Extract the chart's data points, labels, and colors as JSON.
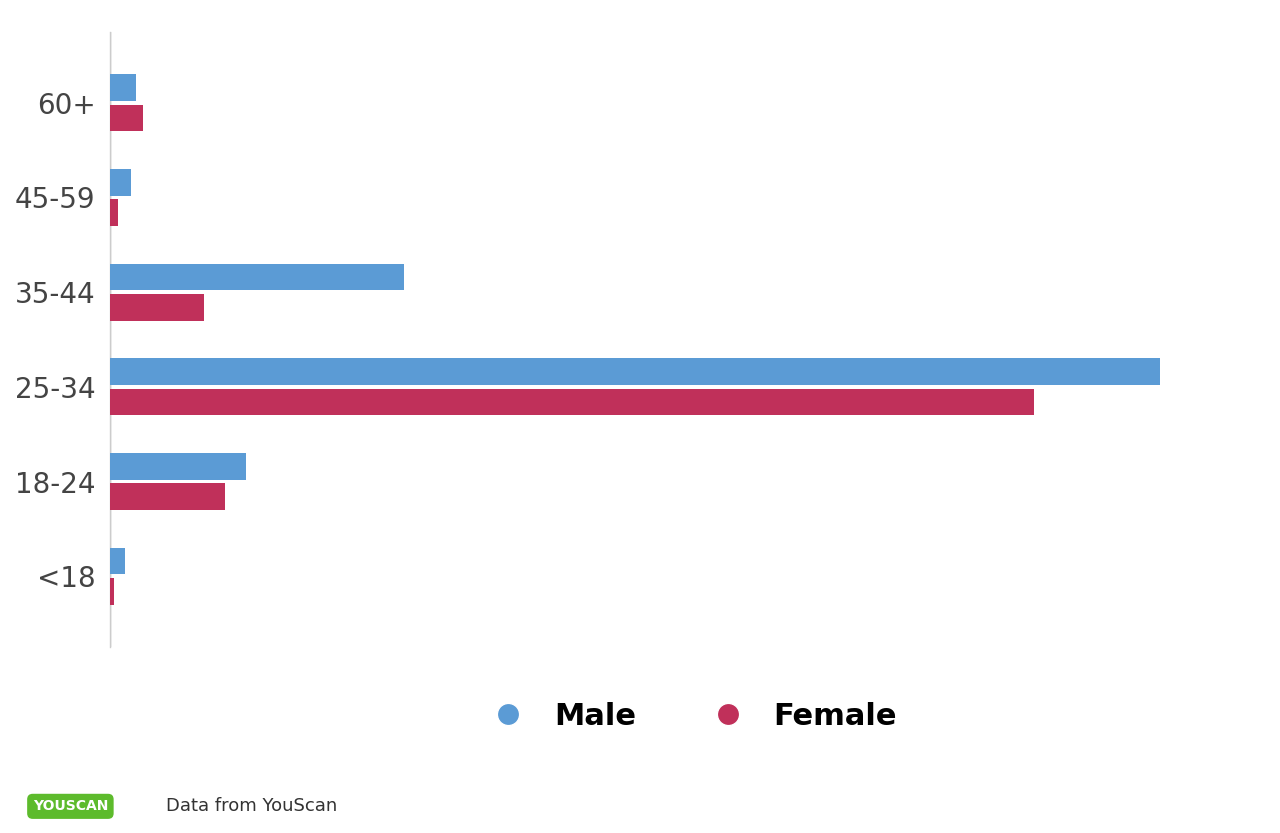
{
  "categories": [
    "60+",
    "45-59",
    "35-44",
    "25-34",
    "18-24",
    "<18"
  ],
  "male_values": [
    2.5,
    2.0,
    28,
    100,
    13,
    1.5
  ],
  "female_values": [
    3.2,
    0.8,
    9,
    88,
    11,
    0.4
  ],
  "male_color": "#5B9BD5",
  "female_color": "#C0305A",
  "background_color": "#FFFFFF",
  "bar_height": 0.28,
  "bar_gap": 0.04,
  "legend_male": "Male",
  "legend_female": "Female",
  "youscan_text": "Data from YouScan",
  "youscan_bg": "#5DBB2C",
  "youscan_text_color": "#FFFFFF",
  "label_fontsize": 20,
  "legend_fontsize": 22,
  "youscan_fontsize": 13
}
